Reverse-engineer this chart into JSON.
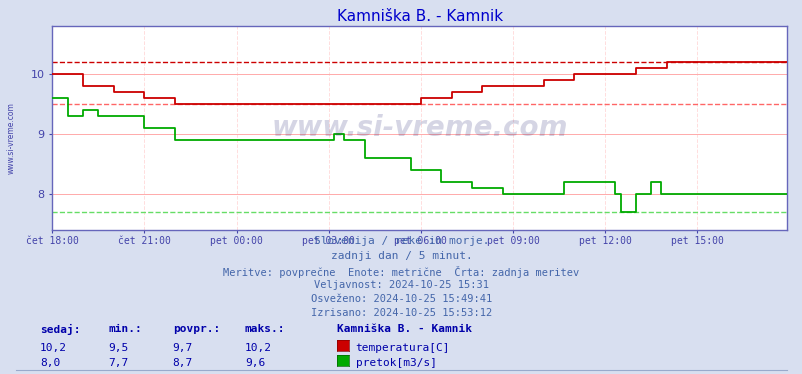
{
  "title": "Kamniška B. - Kamnik",
  "title_color": "#0000cc",
  "bg_color": "#d8dff0",
  "plot_bg_color": "#ffffff",
  "grid_color_h": "#ffaaaa",
  "grid_color_v": "#ffdddd",
  "axis_color": "#6666bb",
  "tick_color": "#4444aa",
  "watermark": "www.si-vreme.com",
  "xlim": [
    0,
    287
  ],
  "ylim": [
    7.4,
    10.8
  ],
  "yticks": [
    8,
    9,
    10
  ],
  "xtick_labels": [
    "čet 18:00",
    "čet 21:00",
    "pet 00:00",
    "pet 03:00",
    "pet 06:00",
    "pet 09:00",
    "pet 12:00",
    "pet 15:00"
  ],
  "xtick_positions": [
    0,
    36,
    72,
    108,
    144,
    180,
    216,
    252
  ],
  "temp_color": "#cc0000",
  "flow_color": "#00aa00",
  "temp_max_line": 10.2,
  "temp_min_line": 9.5,
  "flow_max_line": 9.6,
  "flow_min_line": 7.7,
  "info_lines": [
    "Slovenija / reke in morje.",
    "zadnji dan / 5 minut.",
    "Meritve: povprečne  Enote: metrične  Črta: zadnja meritev",
    "Veljavnost: 2024-10-25 15:31",
    "Osveženo: 2024-10-25 15:49:41",
    "Izrisano: 2024-10-25 15:53:12"
  ],
  "legend_title": "Kamniška B. - Kamnik",
  "stat_headers": [
    "sedaj:",
    "min.:",
    "povpr.:",
    "maks.:"
  ],
  "stat_row1": [
    "10,2",
    "9,5",
    "9,7",
    "10,2"
  ],
  "stat_row2": [
    "8,0",
    "7,7",
    "8,7",
    "9,6"
  ],
  "legend_labels": [
    "temperatura[C]",
    "pretok[m3/s]"
  ],
  "legend_colors": [
    "#cc0000",
    "#00aa00"
  ],
  "temp_data": [
    10.0,
    10.0,
    10.0,
    10.0,
    10.0,
    10.0,
    10.0,
    10.0,
    10.0,
    10.0,
    10.0,
    10.0,
    9.8,
    9.8,
    9.8,
    9.8,
    9.8,
    9.8,
    9.8,
    9.8,
    9.8,
    9.8,
    9.8,
    9.8,
    9.7,
    9.7,
    9.7,
    9.7,
    9.7,
    9.7,
    9.7,
    9.7,
    9.7,
    9.7,
    9.7,
    9.7,
    9.6,
    9.6,
    9.6,
    9.6,
    9.6,
    9.6,
    9.6,
    9.6,
    9.6,
    9.6,
    9.6,
    9.6,
    9.5,
    9.5,
    9.5,
    9.5,
    9.5,
    9.5,
    9.5,
    9.5,
    9.5,
    9.5,
    9.5,
    9.5,
    9.5,
    9.5,
    9.5,
    9.5,
    9.5,
    9.5,
    9.5,
    9.5,
    9.5,
    9.5,
    9.5,
    9.5,
    9.5,
    9.5,
    9.5,
    9.5,
    9.5,
    9.5,
    9.5,
    9.5,
    9.5,
    9.5,
    9.5,
    9.5,
    9.5,
    9.5,
    9.5,
    9.5,
    9.5,
    9.5,
    9.5,
    9.5,
    9.5,
    9.5,
    9.5,
    9.5,
    9.5,
    9.5,
    9.5,
    9.5,
    9.5,
    9.5,
    9.5,
    9.5,
    9.5,
    9.5,
    9.5,
    9.5,
    9.5,
    9.5,
    9.5,
    9.5,
    9.5,
    9.5,
    9.5,
    9.5,
    9.5,
    9.5,
    9.5,
    9.5,
    9.5,
    9.5,
    9.5,
    9.5,
    9.5,
    9.5,
    9.5,
    9.5,
    9.5,
    9.5,
    9.5,
    9.5,
    9.5,
    9.5,
    9.5,
    9.5,
    9.5,
    9.5,
    9.5,
    9.5,
    9.5,
    9.5,
    9.5,
    9.5,
    9.6,
    9.6,
    9.6,
    9.6,
    9.6,
    9.6,
    9.6,
    9.6,
    9.6,
    9.6,
    9.6,
    9.6,
    9.7,
    9.7,
    9.7,
    9.7,
    9.7,
    9.7,
    9.7,
    9.7,
    9.7,
    9.7,
    9.7,
    9.7,
    9.8,
    9.8,
    9.8,
    9.8,
    9.8,
    9.8,
    9.8,
    9.8,
    9.8,
    9.8,
    9.8,
    9.8,
    9.8,
    9.8,
    9.8,
    9.8,
    9.8,
    9.8,
    9.8,
    9.8,
    9.8,
    9.8,
    9.8,
    9.8,
    9.9,
    9.9,
    9.9,
    9.9,
    9.9,
    9.9,
    9.9,
    9.9,
    9.9,
    9.9,
    9.9,
    9.9,
    10.0,
    10.0,
    10.0,
    10.0,
    10.0,
    10.0,
    10.0,
    10.0,
    10.0,
    10.0,
    10.0,
    10.0,
    10.0,
    10.0,
    10.0,
    10.0,
    10.0,
    10.0,
    10.0,
    10.0,
    10.0,
    10.0,
    10.0,
    10.0,
    10.1,
    10.1,
    10.1,
    10.1,
    10.1,
    10.1,
    10.1,
    10.1,
    10.1,
    10.1,
    10.1,
    10.1,
    10.2,
    10.2,
    10.2,
    10.2,
    10.2,
    10.2,
    10.2,
    10.2,
    10.2,
    10.2,
    10.2,
    10.2,
    10.2,
    10.2,
    10.2,
    10.2,
    10.2,
    10.2,
    10.2,
    10.2,
    10.2,
    10.2,
    10.2,
    10.2,
    10.2,
    10.2,
    10.2,
    10.2,
    10.2,
    10.2,
    10.2,
    10.2,
    10.2,
    10.2,
    10.2,
    10.2,
    10.2,
    10.2,
    10.2,
    10.2,
    10.2,
    10.2,
    10.2,
    10.2,
    10.2,
    10.2,
    10.2,
    10.2
  ],
  "flow_data": [
    9.6,
    9.6,
    9.6,
    9.6,
    9.6,
    9.6,
    9.3,
    9.3,
    9.3,
    9.3,
    9.3,
    9.3,
    9.4,
    9.4,
    9.4,
    9.4,
    9.4,
    9.4,
    9.3,
    9.3,
    9.3,
    9.3,
    9.3,
    9.3,
    9.3,
    9.3,
    9.3,
    9.3,
    9.3,
    9.3,
    9.3,
    9.3,
    9.3,
    9.3,
    9.3,
    9.3,
    9.1,
    9.1,
    9.1,
    9.1,
    9.1,
    9.1,
    9.1,
    9.1,
    9.1,
    9.1,
    9.1,
    9.1,
    8.9,
    8.9,
    8.9,
    8.9,
    8.9,
    8.9,
    8.9,
    8.9,
    8.9,
    8.9,
    8.9,
    8.9,
    8.9,
    8.9,
    8.9,
    8.9,
    8.9,
    8.9,
    8.9,
    8.9,
    8.9,
    8.9,
    8.9,
    8.9,
    8.9,
    8.9,
    8.9,
    8.9,
    8.9,
    8.9,
    8.9,
    8.9,
    8.9,
    8.9,
    8.9,
    8.9,
    8.9,
    8.9,
    8.9,
    8.9,
    8.9,
    8.9,
    8.9,
    8.9,
    8.9,
    8.9,
    8.9,
    8.9,
    8.9,
    8.9,
    8.9,
    8.9,
    8.9,
    8.9,
    8.9,
    8.9,
    8.9,
    8.9,
    8.9,
    8.9,
    8.9,
    8.9,
    9.0,
    9.0,
    9.0,
    9.0,
    8.9,
    8.9,
    8.9,
    8.9,
    8.9,
    8.9,
    8.9,
    8.9,
    8.6,
    8.6,
    8.6,
    8.6,
    8.6,
    8.6,
    8.6,
    8.6,
    8.6,
    8.6,
    8.6,
    8.6,
    8.6,
    8.6,
    8.6,
    8.6,
    8.6,
    8.6,
    8.4,
    8.4,
    8.4,
    8.4,
    8.4,
    8.4,
    8.4,
    8.4,
    8.4,
    8.4,
    8.4,
    8.4,
    8.2,
    8.2,
    8.2,
    8.2,
    8.2,
    8.2,
    8.2,
    8.2,
    8.2,
    8.2,
    8.2,
    8.2,
    8.1,
    8.1,
    8.1,
    8.1,
    8.1,
    8.1,
    8.1,
    8.1,
    8.1,
    8.1,
    8.1,
    8.1,
    8.0,
    8.0,
    8.0,
    8.0,
    8.0,
    8.0,
    8.0,
    8.0,
    8.0,
    8.0,
    8.0,
    8.0,
    8.0,
    8.0,
    8.0,
    8.0,
    8.0,
    8.0,
    8.0,
    8.0,
    8.0,
    8.0,
    8.0,
    8.0,
    8.2,
    8.2,
    8.2,
    8.2,
    8.2,
    8.2,
    8.2,
    8.2,
    8.2,
    8.2,
    8.2,
    8.2,
    8.2,
    8.2,
    8.2,
    8.2,
    8.2,
    8.2,
    8.2,
    8.2,
    8.0,
    8.0,
    7.7,
    7.7,
    7.7,
    7.7,
    7.7,
    7.7,
    8.0,
    8.0,
    8.0,
    8.0,
    8.0,
    8.0,
    8.2,
    8.2,
    8.2,
    8.2,
    8.0,
    8.0,
    8.0,
    8.0,
    8.0,
    8.0,
    8.0,
    8.0
  ]
}
